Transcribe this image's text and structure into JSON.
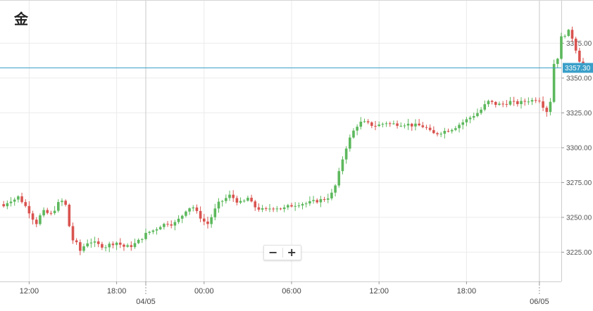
{
  "title": "金",
  "zoom": {
    "out_label": "−",
    "in_label": "+"
  },
  "colors": {
    "up": "#5cb85c",
    "down": "#d9534f",
    "price_line": "#3a9fc9",
    "grid": "#ebebeb"
  },
  "chart_data": {
    "type": "candlestick",
    "title": "金",
    "current_price": 3357.3,
    "current_price_label": "3357.30",
    "ylim": [
      3204,
      3403
    ],
    "y_ticks": [
      3225,
      3250,
      3275,
      3300,
      3325,
      3350,
      3375
    ],
    "y_tick_labels": [
      "3225.00",
      "3250.00",
      "3275.00",
      "3300.00",
      "3325.00",
      "3350.00",
      "3375.00"
    ],
    "x_ticks": [
      {
        "hour": 12,
        "label": "12:00",
        "date": ""
      },
      {
        "hour": 18,
        "label": "18:00",
        "date": ""
      },
      {
        "hour": 20,
        "label": "",
        "date": "04/05"
      },
      {
        "hour": 24,
        "label": "00:00",
        "date": ""
      },
      {
        "hour": 30,
        "label": "06:00",
        "date": ""
      },
      {
        "hour": 36,
        "label": "12:00",
        "date": ""
      },
      {
        "hour": 42,
        "label": "18:00",
        "date": ""
      },
      {
        "hour": 47,
        "label": "",
        "date": "06/05"
      }
    ],
    "bar_hours": 0.25,
    "close_anchors": [
      [
        10.25,
        3258
      ],
      [
        10.6,
        3262
      ],
      [
        11.0,
        3263
      ],
      [
        11.3,
        3265
      ],
      [
        11.6,
        3260
      ],
      [
        11.9,
        3256
      ],
      [
        12.2,
        3250
      ],
      [
        12.5,
        3246
      ],
      [
        12.8,
        3252
      ],
      [
        13.1,
        3255
      ],
      [
        13.4,
        3251
      ],
      [
        13.7,
        3255
      ],
      [
        14.0,
        3260
      ],
      [
        14.3,
        3262
      ],
      [
        14.6,
        3257
      ],
      [
        14.85,
        3235
      ],
      [
        15.2,
        3232
      ],
      [
        15.5,
        3226
      ],
      [
        15.8,
        3230
      ],
      [
        16.1,
        3233
      ],
      [
        16.4,
        3232
      ],
      [
        16.8,
        3230
      ],
      [
        17.2,
        3229
      ],
      [
        17.6,
        3231
      ],
      [
        18.0,
        3232
      ],
      [
        18.5,
        3229
      ],
      [
        18.9,
        3229
      ],
      [
        19.4,
        3232
      ],
      [
        19.8,
        3236
      ],
      [
        20.1,
        3239
      ],
      [
        20.6,
        3241
      ],
      [
        21.0,
        3244
      ],
      [
        21.5,
        3246
      ],
      [
        21.9,
        3245
      ],
      [
        22.4,
        3250
      ],
      [
        22.8,
        3256
      ],
      [
        23.2,
        3258
      ],
      [
        23.6,
        3252
      ],
      [
        24.0,
        3247
      ],
      [
        24.3,
        3245
      ],
      [
        24.6,
        3253
      ],
      [
        25.0,
        3260
      ],
      [
        25.4,
        3263
      ],
      [
        25.8,
        3266
      ],
      [
        26.2,
        3262
      ],
      [
        26.6,
        3260
      ],
      [
        27.0,
        3264
      ],
      [
        27.4,
        3258
      ],
      [
        27.8,
        3256
      ],
      [
        28.2,
        3255
      ],
      [
        28.6,
        3257
      ],
      [
        29.0,
        3257
      ],
      [
        29.4,
        3256
      ],
      [
        29.8,
        3258
      ],
      [
        30.2,
        3259
      ],
      [
        30.6,
        3260
      ],
      [
        31.0,
        3260
      ],
      [
        31.4,
        3261
      ],
      [
        31.8,
        3262
      ],
      [
        32.2,
        3263
      ],
      [
        32.6,
        3265
      ],
      [
        32.9,
        3269
      ],
      [
        33.2,
        3280
      ],
      [
        33.5,
        3292
      ],
      [
        33.8,
        3302
      ],
      [
        34.1,
        3309
      ],
      [
        34.4,
        3315
      ],
      [
        34.7,
        3318
      ],
      [
        35.0,
        3318
      ],
      [
        35.3,
        3317
      ],
      [
        35.6,
        3316
      ],
      [
        35.9,
        3316
      ],
      [
        36.2,
        3317
      ],
      [
        36.5,
        3318
      ],
      [
        36.8,
        3317
      ],
      [
        37.1,
        3317
      ],
      [
        37.5,
        3317
      ],
      [
        37.9,
        3317
      ],
      [
        38.3,
        3316
      ],
      [
        38.7,
        3316
      ],
      [
        39.1,
        3315
      ],
      [
        39.4,
        3313
      ],
      [
        39.6,
        3310
      ],
      [
        39.9,
        3310
      ],
      [
        40.2,
        3311
      ],
      [
        40.5,
        3312
      ],
      [
        40.8,
        3313
      ],
      [
        41.1,
        3314
      ],
      [
        41.4,
        3316
      ],
      [
        41.7,
        3318
      ],
      [
        42.0,
        3320
      ],
      [
        42.3,
        3322
      ],
      [
        42.6,
        3324
      ],
      [
        42.9,
        3326
      ],
      [
        43.2,
        3330
      ],
      [
        43.5,
        3333
      ],
      [
        43.8,
        3332
      ],
      [
        44.1,
        3331
      ],
      [
        44.4,
        3331
      ],
      [
        44.7,
        3332
      ],
      [
        45.0,
        3333
      ],
      [
        45.3,
        3332
      ],
      [
        45.6,
        3332
      ],
      [
        45.9,
        3333
      ],
      [
        46.2,
        3334
      ],
      [
        46.5,
        3334
      ],
      [
        46.8,
        3335
      ],
      [
        47.1,
        3334
      ],
      [
        47.4,
        3326
      ],
      [
        47.7,
        3327
      ],
      [
        47.95,
        3360
      ],
      [
        48.2,
        3362
      ],
      [
        48.5,
        3379
      ],
      [
        48.8,
        3382
      ],
      [
        49.1,
        3384
      ],
      [
        49.4,
        3374
      ],
      [
        49.7,
        3364
      ],
      [
        50.0,
        3357
      ],
      [
        50.2,
        3357
      ]
    ]
  }
}
